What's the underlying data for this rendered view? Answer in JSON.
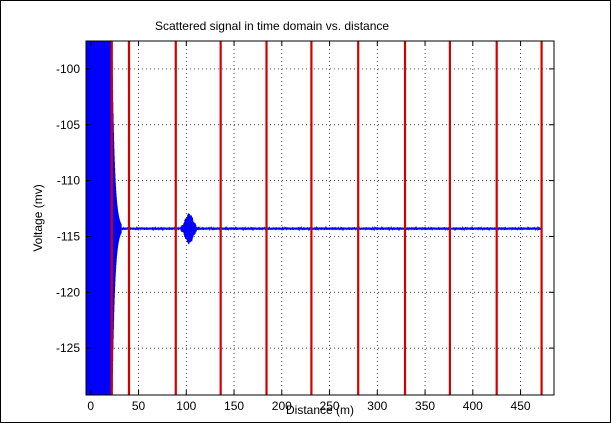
{
  "chart_data": {
    "type": "line",
    "title": "Scattered signal in time domain vs. distance",
    "xlabel": "Distance (m)",
    "ylabel": "Voltage (mv)",
    "xlim": [
      -5,
      485
    ],
    "ylim": [
      -129.2,
      -97.5
    ],
    "xticks": [
      0,
      50,
      100,
      150,
      200,
      250,
      300,
      350,
      400,
      450
    ],
    "yticks": [
      -100,
      -105,
      -110,
      -115,
      -120,
      -125
    ],
    "grid": true,
    "baseline": -114.3,
    "near_field_end": 22,
    "ringdown_end": 32,
    "echo_center": 103,
    "echo_halfwidth": 8,
    "echo_amplitude": 1.3,
    "vertical_markers": [
      22,
      40,
      89,
      136,
      184,
      231,
      280,
      329,
      376,
      425,
      472
    ],
    "colors": {
      "signal": "#0000ff",
      "markers": "#d40000",
      "grid": "#000000"
    }
  }
}
